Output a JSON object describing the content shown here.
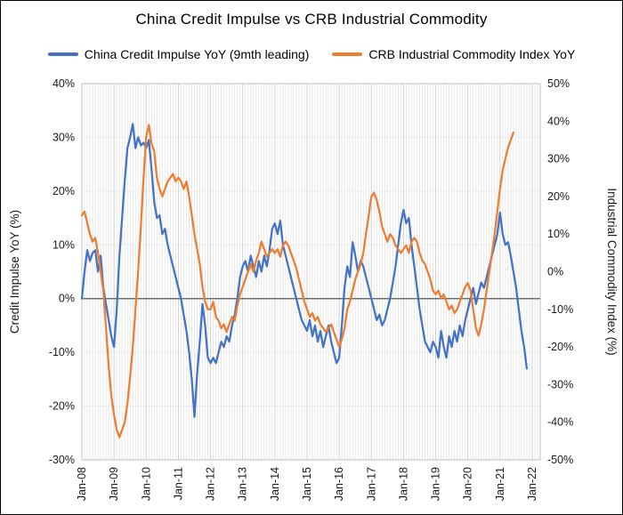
{
  "chart_data": {
    "type": "line",
    "title": "China Credit Impulse vs CRB Industrial Commodity",
    "grid": true,
    "legend_position": "top",
    "x_ticks": [
      "Jan-08",
      "Jan-09",
      "Jan-10",
      "Jan-11",
      "Jan-12",
      "Jan-13",
      "Jan-14",
      "Jan-15",
      "Jan-16",
      "Jan-17",
      "Jan-18",
      "Jan-19",
      "Jan-20",
      "Jan-21",
      "Jan-22"
    ],
    "x_tick_interval_months": 12,
    "left_axis": {
      "label": "Credit Impulse YoY (%)",
      "min": -30,
      "max": 40,
      "step": 10,
      "unit": "%"
    },
    "right_axis": {
      "label": "Industrial Commodity Index (%)",
      "min": -50,
      "max": 50,
      "step": 10,
      "unit": "%"
    },
    "series": [
      {
        "name": "China Credit Impulse YoY (9mth leading)",
        "color": "#4472C4",
        "axis": "left",
        "start": "Jan-08",
        "frequency": "monthly",
        "values": [
          0,
          5,
          9,
          7,
          8.5,
          9,
          5,
          8,
          2,
          -1,
          -4,
          -7,
          -9,
          -2,
          8,
          15,
          22,
          28,
          30,
          32.5,
          28,
          30,
          28.5,
          29,
          28,
          29.5,
          24,
          18,
          15,
          15.5,
          12,
          13,
          10,
          8,
          6,
          4,
          2,
          0,
          -3,
          -6,
          -10,
          -15,
          -22,
          -14,
          -8,
          -1,
          -5,
          -11,
          -12,
          -11,
          -12,
          -10,
          -8,
          -9,
          -7,
          -8,
          -5,
          -3,
          0,
          4,
          6,
          7,
          5,
          8,
          6,
          4,
          7,
          5,
          8,
          6,
          9,
          13,
          14,
          12,
          14.5,
          10,
          8,
          6,
          4,
          2,
          0,
          -2,
          -4,
          -5,
          -6,
          -4,
          -7,
          -5,
          -8,
          -6,
          -9,
          -7,
          -5,
          -8,
          -10,
          -12,
          -11,
          -5,
          2,
          6,
          4,
          10.5,
          8,
          5,
          7,
          6,
          4,
          2,
          0,
          -2,
          -4,
          -3,
          -5,
          -4,
          -2,
          0,
          3,
          6,
          10,
          14,
          16.5,
          14,
          15,
          10,
          6,
          2,
          -2,
          -5,
          -8,
          -9,
          -10,
          -8,
          -9,
          -11,
          -6,
          -9,
          -11,
          -7,
          -9,
          -6,
          -8,
          -5,
          -7,
          -4,
          -2,
          0,
          2,
          -1,
          1,
          3,
          2,
          4,
          6,
          8,
          10,
          12,
          16,
          12,
          10,
          10.5,
          8,
          5,
          2,
          -2,
          -6,
          -9,
          -13
        ]
      },
      {
        "name": "CRB Industrial Commodity Index YoY",
        "color": "#ED7D31",
        "axis": "right",
        "start": "Jan-08",
        "frequency": "monthly",
        "values": [
          15,
          16,
          13,
          10,
          8,
          9,
          5,
          0,
          -5,
          -15,
          -25,
          -33,
          -38,
          -42,
          -44,
          -42,
          -40,
          -35,
          -28,
          -20,
          -10,
          0,
          12,
          25,
          36,
          39,
          34,
          32,
          25,
          22,
          20,
          22,
          24,
          25,
          26,
          24,
          25,
          24,
          22,
          24,
          20,
          15,
          10,
          6,
          2,
          -4,
          -8,
          -10,
          -10,
          -8,
          -12,
          -13,
          -15,
          -14,
          -16,
          -14,
          -12,
          -13,
          -9,
          -6,
          -4,
          -2,
          0,
          2,
          0,
          3,
          5,
          8,
          6,
          4,
          5,
          6,
          5,
          6,
          4,
          7,
          8,
          7,
          5,
          3,
          1,
          -2,
          -5,
          -8,
          -10,
          -12,
          -11,
          -13,
          -12,
          -14,
          -15,
          -16,
          -15,
          -14,
          -16,
          -18,
          -20,
          -18,
          -15,
          -10,
          -8,
          -5,
          -2,
          0,
          2,
          5,
          10,
          15,
          20,
          21,
          19,
          16,
          12,
          10,
          8,
          10,
          9,
          7,
          6,
          5,
          6,
          7,
          5,
          8,
          9,
          8,
          5,
          3,
          2,
          0,
          -2,
          -5,
          -6,
          -5,
          -7,
          -6,
          -8,
          -10,
          -9,
          -11,
          -10,
          -8,
          -6,
          -4,
          -3,
          -5,
          -10,
          -15,
          -17,
          -14,
          -10,
          -5,
          0,
          5,
          10,
          16,
          22,
          27,
          30,
          33,
          35,
          37
        ]
      }
    ]
  }
}
